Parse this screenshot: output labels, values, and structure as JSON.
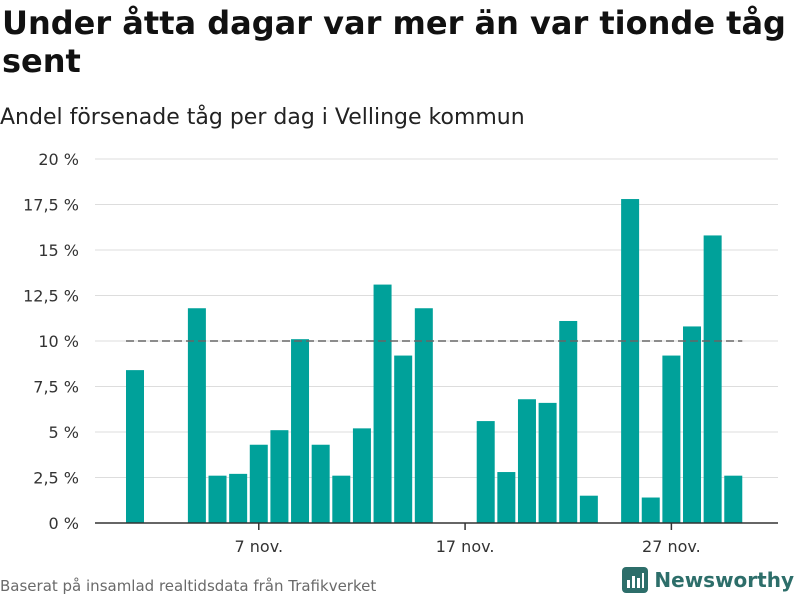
{
  "header": {
    "title": "Under åtta dagar var mer än var tionde tåg sent",
    "subtitle": "Andel försenade tåg per dag i Vellinge kommun"
  },
  "footer": {
    "source": "Baserat på insamlad realtidsdata från Trafikverket",
    "brand": "Newsworthy",
    "brand_icon": "newsworthy-logo-icon"
  },
  "colors": {
    "bar": "#00a19a",
    "grid": "#dddddd",
    "reference_line": "#666666",
    "axis": "#333333",
    "tick_text": "#333333",
    "brand": "#2d6e6a"
  },
  "chart_data": {
    "type": "bar",
    "title": "",
    "xlabel": "",
    "ylabel": "",
    "ylim": [
      0,
      20
    ],
    "y_ticks": [
      "0 %",
      "2,5 %",
      "5 %",
      "7,5 %",
      "10 %",
      "12,5 %",
      "15 %",
      "17,5 %",
      "20 %"
    ],
    "y_tick_values": [
      0,
      2.5,
      5,
      7.5,
      10,
      12.5,
      15,
      17.5,
      20
    ],
    "x_tick_labels": [
      "7 nov.",
      "17 nov.",
      "27 nov."
    ],
    "x_tick_days": [
      7,
      17,
      27
    ],
    "reference_line": {
      "y": 10,
      "style": "dashed"
    },
    "grid": true,
    "series": [
      {
        "x": [
          1,
          2,
          3,
          4,
          5,
          6,
          7,
          8,
          9,
          10,
          11,
          12,
          13,
          14,
          15,
          16,
          17,
          18,
          19,
          20,
          21,
          22,
          23,
          24,
          25,
          26,
          27,
          28,
          29,
          30
        ],
        "values": [
          8.4,
          0,
          0,
          11.8,
          2.6,
          2.7,
          4.3,
          5.1,
          10.1,
          4.3,
          2.6,
          5.2,
          13.1,
          9.2,
          11.8,
          0,
          0,
          5.6,
          2.8,
          6.8,
          6.6,
          11.1,
          1.5,
          0,
          17.8,
          1.4,
          9.2,
          10.8,
          15.8,
          2.6
        ]
      }
    ]
  }
}
